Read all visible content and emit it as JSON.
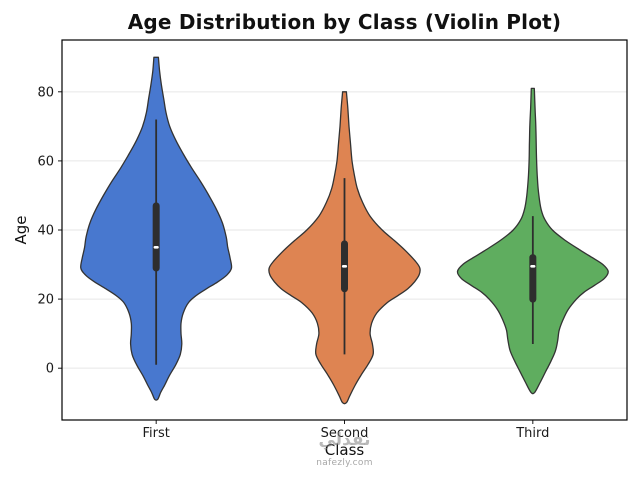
{
  "chart_data": {
    "type": "violin",
    "title": "Age Distribution by Class (Violin Plot)",
    "xlabel": "Class",
    "ylabel": "Age",
    "categories": [
      "First",
      "Second",
      "Third"
    ],
    "ylim": [
      -15,
      95
    ],
    "yticks": [
      0,
      20,
      40,
      60,
      80
    ],
    "grid": "horizontal",
    "grid_color": "#e6e6e6",
    "violin_edge_color": "#333333",
    "box_color": "#2e2e2e",
    "median_color": "#ffffff",
    "axis_color": "#000000",
    "series": [
      {
        "name": "First",
        "color": "#4878cf",
        "stats": {
          "min": -9,
          "whisker_low": 1,
          "q1": 29,
          "median": 35,
          "q3": 47,
          "whisker_high": 72,
          "max": 90
        },
        "profile": [
          [
            90,
            0.03
          ],
          [
            86,
            0.045
          ],
          [
            82,
            0.07
          ],
          [
            78,
            0.1
          ],
          [
            74,
            0.13
          ],
          [
            70,
            0.18
          ],
          [
            66,
            0.26
          ],
          [
            62,
            0.36
          ],
          [
            58,
            0.47
          ],
          [
            54,
            0.59
          ],
          [
            50,
            0.7
          ],
          [
            46,
            0.8
          ],
          [
            42,
            0.88
          ],
          [
            38,
            0.93
          ],
          [
            35,
            0.95
          ],
          [
            32,
            0.98
          ],
          [
            29,
            1.0
          ],
          [
            27,
            0.94
          ],
          [
            25,
            0.82
          ],
          [
            23,
            0.67
          ],
          [
            21,
            0.53
          ],
          [
            19,
            0.43
          ],
          [
            16,
            0.36
          ],
          [
            13,
            0.33
          ],
          [
            10,
            0.33
          ],
          [
            7,
            0.34
          ],
          [
            4,
            0.32
          ],
          [
            1,
            0.26
          ],
          [
            -2,
            0.18
          ],
          [
            -5,
            0.11
          ],
          [
            -7,
            0.06
          ],
          [
            -9,
            0.02
          ]
        ]
      },
      {
        "name": "Second",
        "color": "#de8452",
        "stats": {
          "min": -10,
          "whisker_low": 4,
          "q1": 23,
          "median": 29.5,
          "q3": 36,
          "whisker_high": 55,
          "max": 80
        },
        "profile": [
          [
            80,
            0.025
          ],
          [
            75,
            0.045
          ],
          [
            70,
            0.06
          ],
          [
            65,
            0.08
          ],
          [
            60,
            0.1
          ],
          [
            56,
            0.13
          ],
          [
            52,
            0.17
          ],
          [
            48,
            0.24
          ],
          [
            44,
            0.34
          ],
          [
            40,
            0.5
          ],
          [
            37,
            0.66
          ],
          [
            34,
            0.81
          ],
          [
            31,
            0.94
          ],
          [
            29,
            1.0
          ],
          [
            27,
            0.99
          ],
          [
            25,
            0.93
          ],
          [
            23,
            0.84
          ],
          [
            21,
            0.71
          ],
          [
            19,
            0.57
          ],
          [
            16,
            0.43
          ],
          [
            13,
            0.36
          ],
          [
            10,
            0.34
          ],
          [
            7,
            0.37
          ],
          [
            4,
            0.38
          ],
          [
            1,
            0.31
          ],
          [
            -2,
            0.22
          ],
          [
            -5,
            0.14
          ],
          [
            -8,
            0.07
          ],
          [
            -10,
            0.025
          ]
        ]
      },
      {
        "name": "Third",
        "color": "#5fad5f",
        "stats": {
          "min": -7,
          "whisker_low": 7,
          "q1": 20,
          "median": 29.5,
          "q3": 32,
          "whisker_high": 44,
          "max": 81
        },
        "profile": [
          [
            81,
            0.02
          ],
          [
            75,
            0.03
          ],
          [
            70,
            0.04
          ],
          [
            65,
            0.045
          ],
          [
            60,
            0.05
          ],
          [
            55,
            0.06
          ],
          [
            50,
            0.08
          ],
          [
            46,
            0.11
          ],
          [
            43,
            0.16
          ],
          [
            40,
            0.26
          ],
          [
            37,
            0.43
          ],
          [
            34,
            0.64
          ],
          [
            32,
            0.79
          ],
          [
            30,
            0.93
          ],
          [
            28,
            1.0
          ],
          [
            26,
            0.95
          ],
          [
            24,
            0.82
          ],
          [
            22,
            0.68
          ],
          [
            20,
            0.58
          ],
          [
            17,
            0.47
          ],
          [
            14,
            0.4
          ],
          [
            11,
            0.35
          ],
          [
            8,
            0.33
          ],
          [
            5,
            0.3
          ],
          [
            2,
            0.24
          ],
          [
            -1,
            0.17
          ],
          [
            -4,
            0.1
          ],
          [
            -7,
            0.025
          ]
        ]
      }
    ]
  },
  "watermark": {
    "brand_arabic": "نفذلي",
    "brand_site": "nafezly.com"
  }
}
